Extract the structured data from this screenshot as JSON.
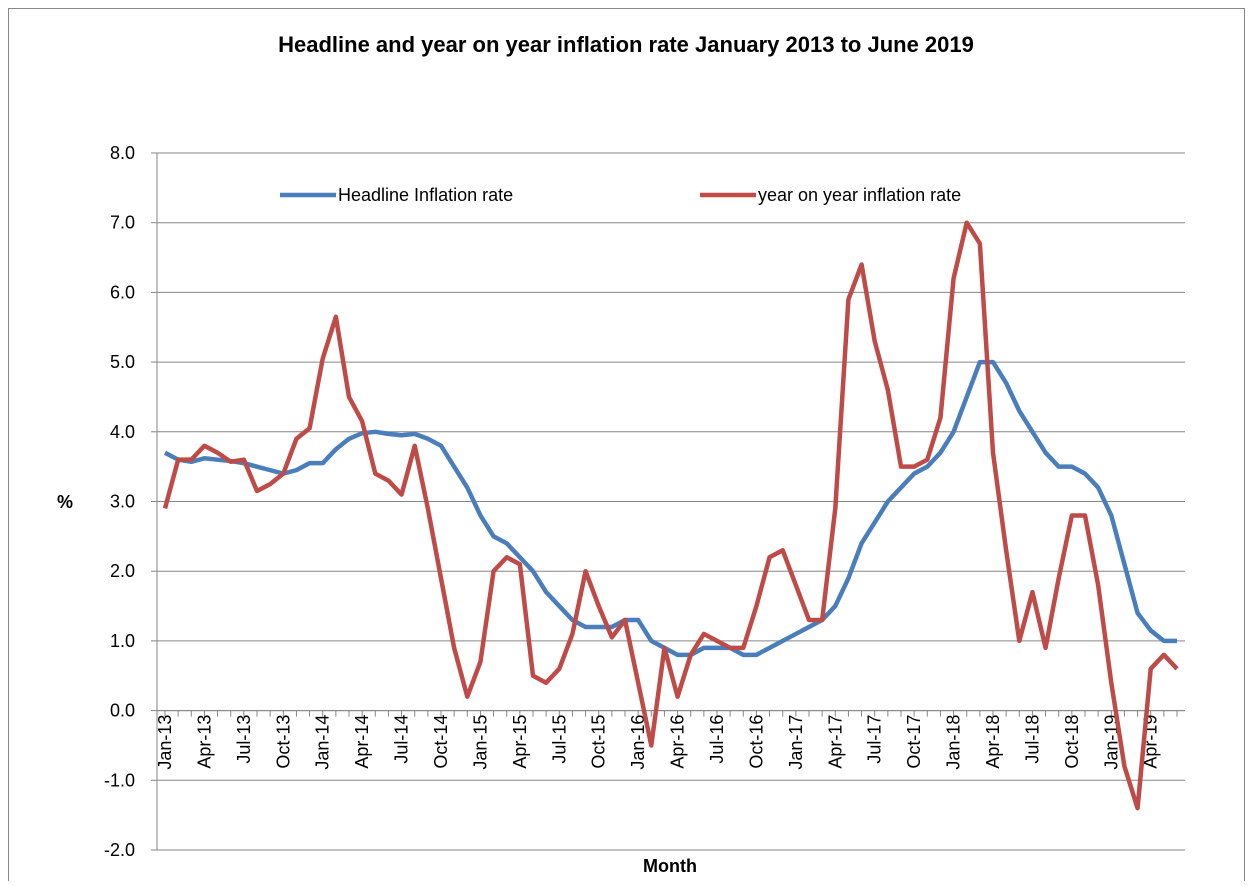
{
  "chart_data": {
    "type": "line",
    "title": "Headline and year on year inflation rate January 2013 to June 2019",
    "x_label": "Month",
    "y_label": "%",
    "categories": [
      "Jan-13",
      null,
      null,
      "Apr-13",
      null,
      null,
      "Jul-13",
      null,
      null,
      "Oct-13",
      null,
      null,
      "Jan-14",
      null,
      null,
      "Apr-14",
      null,
      null,
      "Jul-14",
      null,
      null,
      "Oct-14",
      null,
      null,
      "Jan-15",
      null,
      null,
      "Apr-15",
      null,
      null,
      "Jul-15",
      null,
      null,
      "Oct-15",
      null,
      null,
      "Jan-16",
      null,
      null,
      "Apr-16",
      null,
      null,
      "Jul-16",
      null,
      null,
      "Oct-16",
      null,
      null,
      "Jan-17",
      null,
      null,
      "Apr-17",
      null,
      null,
      "Jul-17",
      null,
      null,
      "Oct-17",
      null,
      null,
      "Jan-18",
      null,
      null,
      "Apr-18",
      null,
      null,
      "Jul-18",
      null,
      null,
      "Oct-18",
      null,
      null,
      "Jan-19",
      null,
      null,
      "Apr-19",
      null,
      null
    ],
    "series": [
      {
        "name": "Headline Inflation rate",
        "color": "#4a7ebb",
        "values": [
          3.7,
          3.6,
          3.57,
          3.62,
          3.6,
          3.58,
          3.55,
          3.5,
          3.45,
          3.4,
          3.45,
          3.55,
          3.55,
          3.75,
          3.9,
          3.98,
          4.0,
          3.97,
          3.95,
          3.97,
          3.9,
          3.8,
          3.5,
          3.2,
          2.8,
          2.5,
          2.4,
          2.2,
          2.0,
          1.7,
          1.5,
          1.3,
          1.2,
          1.2,
          1.2,
          1.3,
          1.3,
          1.0,
          0.9,
          0.8,
          0.8,
          0.9,
          0.9,
          0.9,
          0.8,
          0.8,
          0.9,
          1.0,
          1.1,
          1.2,
          1.3,
          1.5,
          1.9,
          2.4,
          2.7,
          3.0,
          3.2,
          3.4,
          3.5,
          3.7,
          4.0,
          4.5,
          5.0,
          5.0,
          4.7,
          4.3,
          4.0,
          3.7,
          3.5,
          3.5,
          3.4,
          3.2,
          2.8,
          2.1,
          1.4,
          1.15,
          1.0,
          1.0
        ]
      },
      {
        "name": "year on year inflation rate",
        "color": "#be4b48",
        "values": [
          2.9,
          3.6,
          3.6,
          3.8,
          3.7,
          3.57,
          3.6,
          3.15,
          3.25,
          3.4,
          3.9,
          4.05,
          5.05,
          5.65,
          4.5,
          4.15,
          3.4,
          3.3,
          3.1,
          3.8,
          2.9,
          1.9,
          0.9,
          0.2,
          0.7,
          2.0,
          2.2,
          2.1,
          0.5,
          0.4,
          0.6,
          1.1,
          2.0,
          1.5,
          1.05,
          1.3,
          0.4,
          -0.5,
          0.9,
          0.2,
          0.8,
          1.1,
          1.0,
          0.9,
          0.9,
          1.5,
          2.2,
          2.3,
          1.8,
          1.3,
          1.3,
          2.9,
          5.9,
          6.4,
          5.3,
          4.6,
          3.5,
          3.5,
          3.6,
          4.2,
          6.2,
          7.0,
          6.7,
          3.7,
          2.3,
          1.0,
          1.7,
          0.9,
          1.9,
          2.8,
          2.8,
          1.8,
          0.4,
          -0.8,
          -1.4,
          0.6,
          0.8,
          0.6
        ]
      }
    ],
    "ylim": [
      -2,
      8
    ],
    "yticks": [
      {
        "value": -2,
        "label": "-2.0"
      },
      {
        "value": -1,
        "label": "-1.0"
      },
      {
        "value": 0,
        "label": "0.0"
      },
      {
        "value": 1,
        "label": "1.0"
      },
      {
        "value": 2,
        "label": "2.0"
      },
      {
        "value": 3,
        "label": "3.0"
      },
      {
        "value": 4,
        "label": "4.0"
      },
      {
        "value": 5,
        "label": "5.0"
      },
      {
        "value": 6,
        "label": "6.0"
      },
      {
        "value": 7,
        "label": "7.0"
      },
      {
        "value": 8,
        "label": "8.0"
      }
    ],
    "grid": true,
    "legend": "top"
  }
}
